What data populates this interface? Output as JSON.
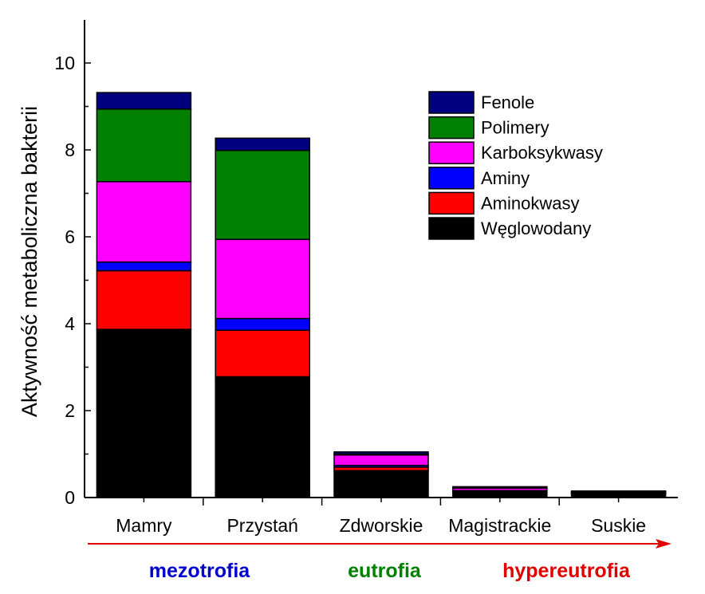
{
  "chart_data": {
    "type": "bar",
    "stacked": true,
    "ylabel": "Aktywność metaboliczna bakterii",
    "ylim": [
      0,
      11
    ],
    "yticks": [
      0,
      2,
      4,
      6,
      8,
      10
    ],
    "categories": [
      "Mamry",
      "Przystań",
      "Zdworskie",
      "Magistrackie",
      "Suskie"
    ],
    "series": [
      {
        "name": "Węglowodany",
        "color": "#000000",
        "values": [
          3.87,
          2.78,
          0.62,
          0.12,
          0.09
        ]
      },
      {
        "name": "Aminokwasy",
        "color": "#ff0000",
        "values": [
          1.35,
          1.07,
          0.08,
          0.03,
          0.01
        ]
      },
      {
        "name": "Aminy",
        "color": "#0000ff",
        "values": [
          0.2,
          0.27,
          0.04,
          0.01,
          0.01
        ]
      },
      {
        "name": "Karboksykwasy",
        "color": "#ff00ff",
        "values": [
          1.85,
          1.82,
          0.24,
          0.06,
          0.01
        ]
      },
      {
        "name": "Polimery",
        "color": "#008000",
        "values": [
          1.67,
          2.05,
          0.02,
          0.01,
          0.01
        ]
      },
      {
        "name": "Fenole",
        "color": "#000080",
        "values": [
          0.38,
          0.28,
          0.05,
          0.02,
          0.02
        ]
      }
    ],
    "legend_position": "top-right",
    "grid": false
  },
  "trophic_labels": [
    {
      "text": "mezotrofia",
      "color": "#0000cc"
    },
    {
      "text": "eutrofia",
      "color": "#008000"
    },
    {
      "text": "hypereutrofia",
      "color": "#e00000"
    }
  ],
  "arrow_color": "#e00000"
}
